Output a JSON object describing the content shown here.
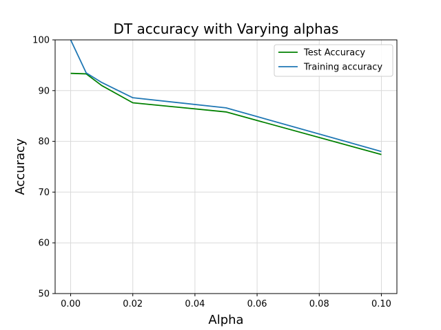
{
  "chart_data": {
    "type": "line",
    "title": "DT accuracy with Varying alphas",
    "xlabel": "Alpha",
    "ylabel": "Accuracy",
    "xlim": [
      -0.005,
      0.105
    ],
    "ylim": [
      50,
      100
    ],
    "xticks": [
      0.0,
      0.02,
      0.04,
      0.06,
      0.08,
      0.1
    ],
    "xtick_labels": [
      "0.00",
      "0.02",
      "0.04",
      "0.06",
      "0.08",
      "0.10"
    ],
    "yticks": [
      50,
      60,
      70,
      80,
      90,
      100
    ],
    "ytick_labels": [
      "50",
      "60",
      "70",
      "80",
      "90",
      "100"
    ],
    "grid": true,
    "legend_position": "top-right",
    "series": [
      {
        "name": "Test Accuracy",
        "color": "#008000",
        "x": [
          0.0,
          0.005,
          0.01,
          0.02,
          0.05,
          0.1
        ],
        "y": [
          93.4,
          93.3,
          91.0,
          87.6,
          85.8,
          77.4
        ]
      },
      {
        "name": "Training accuracy",
        "color": "#1f77b4",
        "x": [
          0.0,
          0.005,
          0.01,
          0.02,
          0.05,
          0.1
        ],
        "y": [
          100.0,
          93.5,
          91.6,
          88.6,
          86.6,
          78.0
        ]
      }
    ]
  }
}
